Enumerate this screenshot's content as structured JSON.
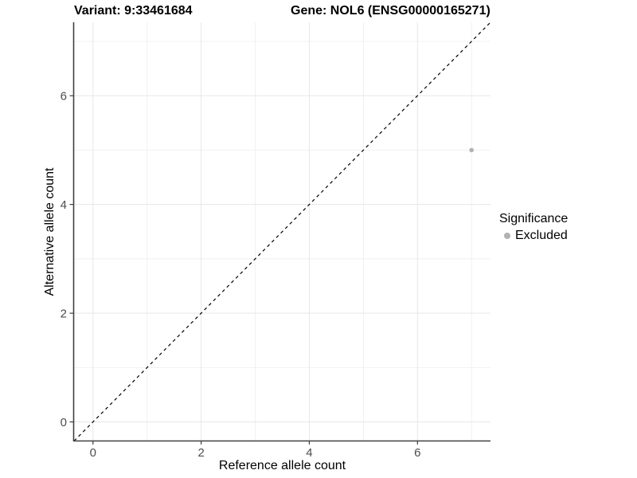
{
  "colors": {
    "background": "#ffffff",
    "axis_line": "#404040",
    "tick_label": "#4d4d4d",
    "grid_major": "#e7e7e7",
    "grid_minor": "#f1f1f1",
    "identity_line": "#000000",
    "point": "#b2b2b2"
  },
  "chart_data": {
    "type": "scatter",
    "titles": [
      "Variant: 9:33461684",
      "Gene: NOL6 (ENSG00000165271)"
    ],
    "xlabel": "Reference allele count",
    "ylabel": "Alternative allele count",
    "xlim": [
      -0.35,
      7.35
    ],
    "ylim": [
      -0.35,
      7.35
    ],
    "x_ticks": [
      0,
      2,
      4,
      6
    ],
    "y_ticks": [
      0,
      2,
      4,
      6
    ],
    "x_minor_ticks": [
      1,
      3,
      5,
      7
    ],
    "y_minor_ticks": [
      1,
      3,
      5,
      7
    ],
    "grid": "major+minor",
    "identity_line": {
      "style": "dashed",
      "from": -0.35,
      "to": 7.35
    },
    "points": [
      {
        "x": 7,
        "y": 5,
        "series": "Excluded"
      }
    ],
    "legend": {
      "position": "right",
      "title": "Significance",
      "items": [
        {
          "label": "Excluded",
          "color": "#b2b2b2"
        }
      ]
    }
  }
}
